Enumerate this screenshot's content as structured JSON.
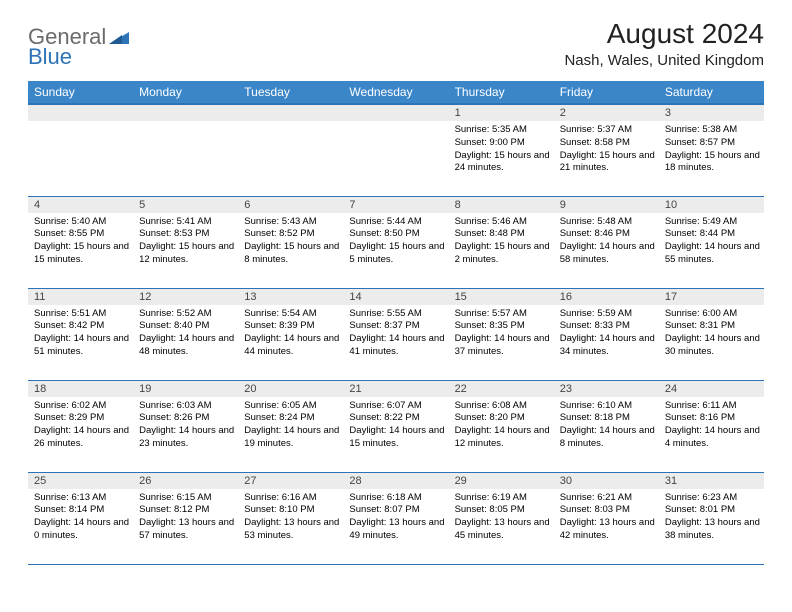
{
  "logo": {
    "text_gray": "General",
    "text_blue": "Blue"
  },
  "title": "August 2024",
  "location": "Nash, Wales, United Kingdom",
  "colors": {
    "header_bg": "#3a86c8",
    "header_border": "#2f73b7",
    "daynum_bg": "#ececec",
    "text": "#000000",
    "logo_gray": "#6b6b6b",
    "logo_blue": "#2f73b7"
  },
  "font": {
    "title_size_pt": 21,
    "location_size_pt": 11,
    "header_size_pt": 9,
    "cell_size_pt": 7
  },
  "weekdays": [
    "Sunday",
    "Monday",
    "Tuesday",
    "Wednesday",
    "Thursday",
    "Friday",
    "Saturday"
  ],
  "weeks": [
    [
      null,
      null,
      null,
      null,
      {
        "n": "1",
        "sr": "5:35 AM",
        "ss": "9:00 PM",
        "dl": "15 hours and 24 minutes."
      },
      {
        "n": "2",
        "sr": "5:37 AM",
        "ss": "8:58 PM",
        "dl": "15 hours and 21 minutes."
      },
      {
        "n": "3",
        "sr": "5:38 AM",
        "ss": "8:57 PM",
        "dl": "15 hours and 18 minutes."
      }
    ],
    [
      {
        "n": "4",
        "sr": "5:40 AM",
        "ss": "8:55 PM",
        "dl": "15 hours and 15 minutes."
      },
      {
        "n": "5",
        "sr": "5:41 AM",
        "ss": "8:53 PM",
        "dl": "15 hours and 12 minutes."
      },
      {
        "n": "6",
        "sr": "5:43 AM",
        "ss": "8:52 PM",
        "dl": "15 hours and 8 minutes."
      },
      {
        "n": "7",
        "sr": "5:44 AM",
        "ss": "8:50 PM",
        "dl": "15 hours and 5 minutes."
      },
      {
        "n": "8",
        "sr": "5:46 AM",
        "ss": "8:48 PM",
        "dl": "15 hours and 2 minutes."
      },
      {
        "n": "9",
        "sr": "5:48 AM",
        "ss": "8:46 PM",
        "dl": "14 hours and 58 minutes."
      },
      {
        "n": "10",
        "sr": "5:49 AM",
        "ss": "8:44 PM",
        "dl": "14 hours and 55 minutes."
      }
    ],
    [
      {
        "n": "11",
        "sr": "5:51 AM",
        "ss": "8:42 PM",
        "dl": "14 hours and 51 minutes."
      },
      {
        "n": "12",
        "sr": "5:52 AM",
        "ss": "8:40 PM",
        "dl": "14 hours and 48 minutes."
      },
      {
        "n": "13",
        "sr": "5:54 AM",
        "ss": "8:39 PM",
        "dl": "14 hours and 44 minutes."
      },
      {
        "n": "14",
        "sr": "5:55 AM",
        "ss": "8:37 PM",
        "dl": "14 hours and 41 minutes."
      },
      {
        "n": "15",
        "sr": "5:57 AM",
        "ss": "8:35 PM",
        "dl": "14 hours and 37 minutes."
      },
      {
        "n": "16",
        "sr": "5:59 AM",
        "ss": "8:33 PM",
        "dl": "14 hours and 34 minutes."
      },
      {
        "n": "17",
        "sr": "6:00 AM",
        "ss": "8:31 PM",
        "dl": "14 hours and 30 minutes."
      }
    ],
    [
      {
        "n": "18",
        "sr": "6:02 AM",
        "ss": "8:29 PM",
        "dl": "14 hours and 26 minutes."
      },
      {
        "n": "19",
        "sr": "6:03 AM",
        "ss": "8:26 PM",
        "dl": "14 hours and 23 minutes."
      },
      {
        "n": "20",
        "sr": "6:05 AM",
        "ss": "8:24 PM",
        "dl": "14 hours and 19 minutes."
      },
      {
        "n": "21",
        "sr": "6:07 AM",
        "ss": "8:22 PM",
        "dl": "14 hours and 15 minutes."
      },
      {
        "n": "22",
        "sr": "6:08 AM",
        "ss": "8:20 PM",
        "dl": "14 hours and 12 minutes."
      },
      {
        "n": "23",
        "sr": "6:10 AM",
        "ss": "8:18 PM",
        "dl": "14 hours and 8 minutes."
      },
      {
        "n": "24",
        "sr": "6:11 AM",
        "ss": "8:16 PM",
        "dl": "14 hours and 4 minutes."
      }
    ],
    [
      {
        "n": "25",
        "sr": "6:13 AM",
        "ss": "8:14 PM",
        "dl": "14 hours and 0 minutes."
      },
      {
        "n": "26",
        "sr": "6:15 AM",
        "ss": "8:12 PM",
        "dl": "13 hours and 57 minutes."
      },
      {
        "n": "27",
        "sr": "6:16 AM",
        "ss": "8:10 PM",
        "dl": "13 hours and 53 minutes."
      },
      {
        "n": "28",
        "sr": "6:18 AM",
        "ss": "8:07 PM",
        "dl": "13 hours and 49 minutes."
      },
      {
        "n": "29",
        "sr": "6:19 AM",
        "ss": "8:05 PM",
        "dl": "13 hours and 45 minutes."
      },
      {
        "n": "30",
        "sr": "6:21 AM",
        "ss": "8:03 PM",
        "dl": "13 hours and 42 minutes."
      },
      {
        "n": "31",
        "sr": "6:23 AM",
        "ss": "8:01 PM",
        "dl": "13 hours and 38 minutes."
      }
    ]
  ],
  "labels": {
    "sunrise": "Sunrise:",
    "sunset": "Sunset:",
    "daylight": "Daylight:"
  }
}
